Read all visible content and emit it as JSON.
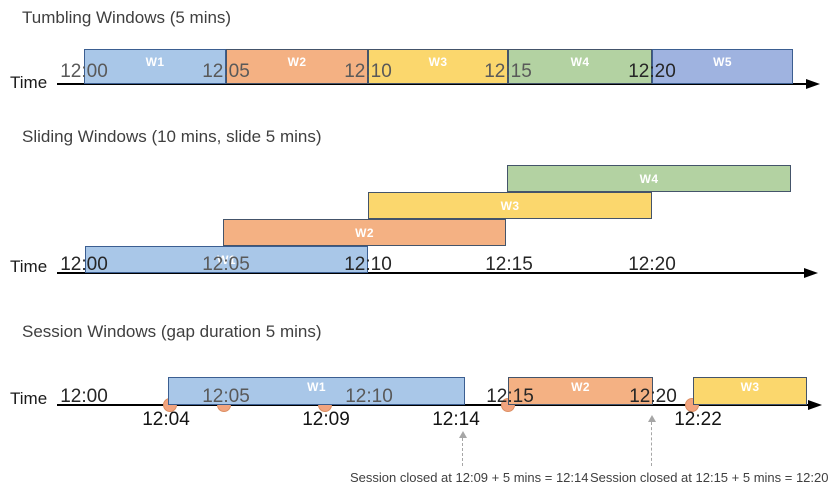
{
  "colors": {
    "axis": "#000000",
    "window_fills": {
      "blue": "#A9C7E8",
      "orange": "#F4B183",
      "yellow": "#FBD76D",
      "green": "#B3D2A2",
      "blue2": "#9FB3E0"
    },
    "window_border": "#44546A",
    "blue_window_border": "#3B5E91",
    "event_dot_fill": "#F2A47F",
    "event_dot_border": "#DC9064",
    "tick_gray": "#595959",
    "tick_dark": "#262626",
    "annotation_gray": "#404040",
    "dashed_arrow": "#A6A6A6"
  },
  "sections": [
    {
      "title": "Tumbling Windows (5 mins)",
      "time_axis_label": "Time",
      "windows": [
        {
          "label": "W1",
          "start": "12:00",
          "end": "12:05",
          "color": "blue"
        },
        {
          "label": "W2",
          "start": "12:05",
          "end": "12:10",
          "color": "orange"
        },
        {
          "label": "W3",
          "start": "12:10",
          "end": "12:15",
          "color": "yellow"
        },
        {
          "label": "W4",
          "start": "12:15",
          "end": "12:20",
          "color": "green"
        },
        {
          "label": "W5",
          "start": "12:20",
          "end": "12:25",
          "color": "blue2"
        }
      ],
      "ticks": [
        {
          "label": "12:00",
          "tone": "gray"
        },
        {
          "label": "12:05",
          "tone": "gray"
        },
        {
          "label": "12:10",
          "tone": "gray"
        },
        {
          "label": "12:15",
          "tone": "gray"
        },
        {
          "label": "12:20",
          "tone": "dark"
        }
      ]
    },
    {
      "title": "Sliding Windows (10 mins, slide 5 mins)",
      "time_axis_label": "Time",
      "windows": [
        {
          "label": "W1",
          "start": "12:00",
          "end": "12:10",
          "color": "blue"
        },
        {
          "label": "W2",
          "start": "12:05",
          "end": "12:15",
          "color": "orange"
        },
        {
          "label": "W3",
          "start": "12:10",
          "end": "12:20",
          "color": "yellow"
        },
        {
          "label": "W4",
          "start": "12:15",
          "end": "12:25",
          "color": "green"
        }
      ],
      "ticks": [
        {
          "label": "12:00",
          "tone": "dark"
        },
        {
          "label": "12:05",
          "tone": "gray"
        },
        {
          "label": "12:10",
          "tone": "dark"
        },
        {
          "label": "12:15",
          "tone": "dark"
        },
        {
          "label": "12:20",
          "tone": "dark"
        }
      ]
    },
    {
      "title": "Session Windows (gap duration 5 mins)",
      "time_axis_label": "Time",
      "windows": [
        {
          "label": "W1",
          "start": "12:04",
          "end": "12:14",
          "color": "blue"
        },
        {
          "label": "W2",
          "start": "12:15",
          "end": "12:20",
          "color": "orange"
        },
        {
          "label": "W3",
          "start": "12:22",
          "color": "yellow"
        }
      ],
      "ticks": [
        {
          "label": "12:00",
          "tone": "dark"
        },
        {
          "label": "12:05",
          "tone": "gray"
        },
        {
          "label": "12:10",
          "tone": "gray"
        },
        {
          "label": "12:15",
          "tone": "dark"
        },
        {
          "label": "12:20",
          "tone": "dark"
        }
      ],
      "event_labels": [
        "12:04",
        "12:09",
        "12:14",
        "12:22"
      ],
      "event_dot_count": 5,
      "annotations": [
        {
          "text": "Session closed at 12:09 + 5 mins = 12:14"
        },
        {
          "text": "Session closed at 12:15 + 5 mins = 12:20"
        }
      ]
    }
  ]
}
